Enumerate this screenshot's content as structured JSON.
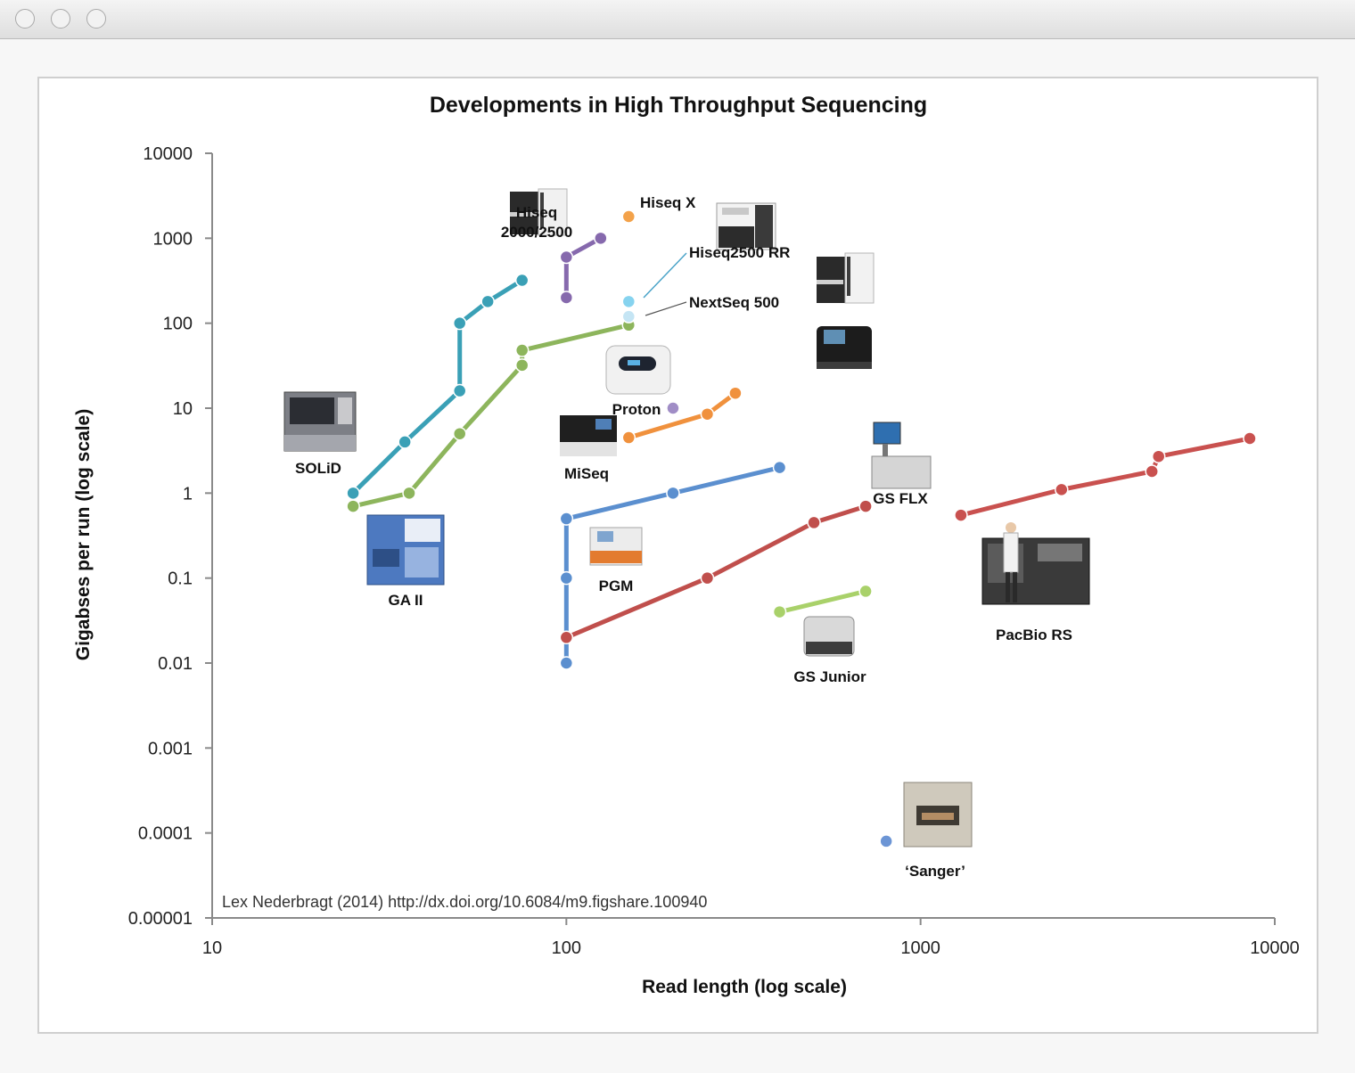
{
  "window": {
    "controls": [
      "close",
      "minimize",
      "zoom"
    ]
  },
  "chart_data": {
    "type": "scatter",
    "title": "Developments in High Throughput Sequencing",
    "xlabel": "Read length (log scale)",
    "ylabel": "Gigabses per run (log scale)",
    "xscale": "log",
    "yscale": "log",
    "xlim": [
      10,
      10000
    ],
    "ylim": [
      1e-05,
      10000
    ],
    "xticks": [
      "10",
      "100",
      "1000",
      "10000"
    ],
    "yticks": [
      "0.00001",
      "0.0001",
      "0.001",
      "0.01",
      "0.1",
      "1",
      "10",
      "100",
      "1000",
      "10000"
    ],
    "grid": false,
    "credit": "Lex Nederbragt (2014) http://dx.doi.org/10.6084/m9.figshare.100940",
    "series": [
      {
        "label": "SOLiD",
        "color": "#3aa0b6",
        "x": [
          25,
          35,
          50,
          50,
          60,
          75
        ],
        "y": [
          1,
          4,
          16,
          100,
          180,
          320
        ]
      },
      {
        "label": "GA II",
        "color": "#8db55c",
        "x": [
          25,
          36,
          50,
          75,
          75,
          150
        ],
        "y": [
          0.7,
          1,
          5,
          32,
          48,
          95
        ]
      },
      {
        "label": "Hiseq 2000/2500",
        "color": "#8669ad",
        "x": [
          100,
          100,
          125
        ],
        "y": [
          200,
          600,
          1000
        ]
      },
      {
        "label": "Hiseq X",
        "color": "#f3a24a",
        "x": [
          150
        ],
        "y": [
          1800
        ]
      },
      {
        "label": "Hiseq2500 RR",
        "color": "#86d3ef",
        "x": [
          150
        ],
        "y": [
          180
        ]
      },
      {
        "label": "NextSeq 500",
        "color": "#c5e5f4",
        "x": [
          150
        ],
        "y": [
          120
        ]
      },
      {
        "label": "Proton",
        "color": "#a08dc6",
        "x": [
          200
        ],
        "y": [
          10
        ]
      },
      {
        "label": "MiSeq",
        "color": "#f0913d",
        "x": [
          150,
          250,
          300
        ],
        "y": [
          4.5,
          8.5,
          15
        ]
      },
      {
        "label": "PGM",
        "color": "#5b8fcf",
        "x": [
          100,
          100,
          100,
          100,
          200,
          400
        ],
        "y": [
          0.01,
          0.1,
          0.5,
          0.5,
          1,
          2
        ]
      },
      {
        "label": "GS FLX",
        "color": "#c04f4c",
        "x": [
          100,
          250,
          500,
          700
        ],
        "y": [
          0.02,
          0.1,
          0.45,
          0.7
        ]
      },
      {
        "label": "GS Junior",
        "color": "#a9d16a",
        "x": [
          400,
          700
        ],
        "y": [
          0.04,
          0.07
        ]
      },
      {
        "label": "PacBio RS",
        "color": "#c9514f",
        "x": [
          1300,
          2500,
          4500,
          4700,
          8500
        ],
        "y": [
          0.55,
          1.1,
          1.8,
          2.7,
          4.4
        ]
      },
      {
        "label": "'Sanger'",
        "color": "#6c95d5",
        "x": [
          800
        ],
        "y": [
          8e-05
        ]
      }
    ],
    "annotations": [
      "Hiseq 2000/2500",
      "Hiseq X",
      "Hiseq2500 RR",
      "NextSeq 500",
      "SOLiD",
      "GA II",
      "Proton",
      "MiSeq",
      "PGM",
      "GS FLX",
      "GS Junior",
      "PacBio RS",
      "‘Sanger’"
    ],
    "instrument_icons": [
      "hiseq-2000-machine-icon",
      "hiseq-x-machine-icon",
      "hiseq2500rr-machine-icon",
      "nextseq-machine-icon",
      "solid-machine-icon",
      "ga2-machine-icon",
      "proton-machine-icon",
      "miseq-machine-icon",
      "pgm-machine-icon",
      "gsflx-machine-icon",
      "gsjunior-machine-icon",
      "pacbio-machine-icon",
      "sanger-machine-icon"
    ]
  },
  "labels": {
    "hiseq_line1": "Hiseq",
    "hiseq_line2": "2000/2500",
    "hiseqx": "Hiseq X",
    "hiseqrr": "Hiseq2500 RR",
    "nextseq": "NextSeq 500",
    "solid": "SOLiD",
    "ga2": "GA II",
    "proton": "Proton",
    "miseq": "MiSeq",
    "pgm": "PGM",
    "gsflx": "GS FLX",
    "gsjunior": "GS Junior",
    "pacbio": "PacBio RS",
    "sanger": "‘Sanger’"
  }
}
